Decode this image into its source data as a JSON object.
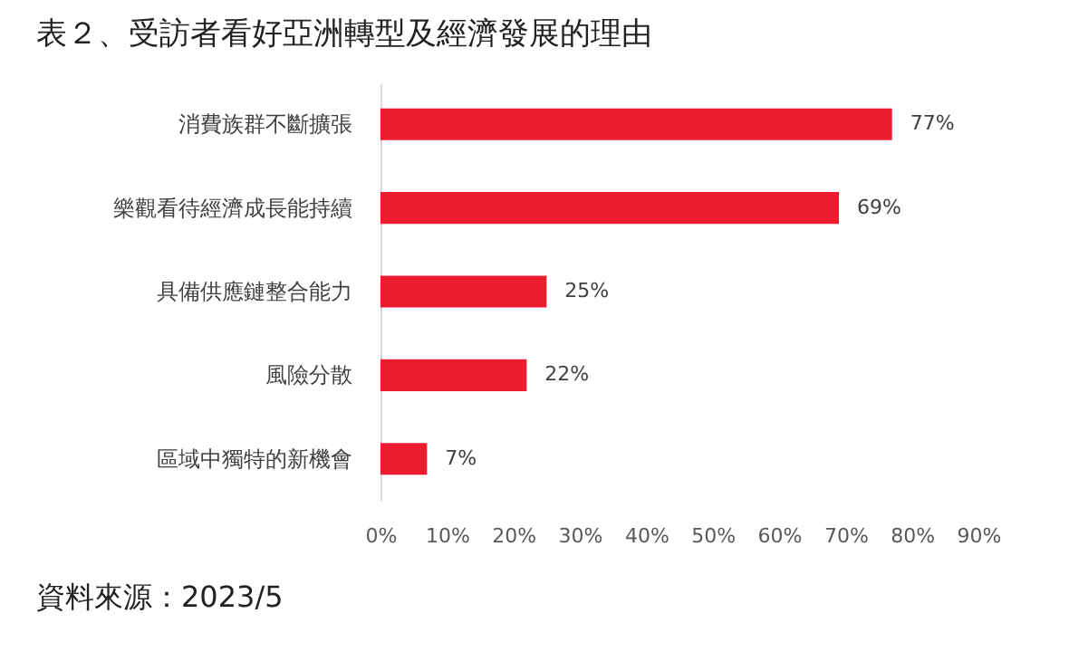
{
  "chart_data": {
    "type": "bar",
    "orientation": "horizontal",
    "title": "表２、受訪者看好亞洲轉型及經濟發展的理由",
    "categories": [
      "消費族群不斷擴張",
      "樂觀看待經濟成長能持續",
      "具備供應鏈整合能力",
      "風險分散",
      "區域中獨特的新機會"
    ],
    "values": [
      77,
      69,
      25,
      22,
      7
    ],
    "value_labels": [
      "77%",
      "69%",
      "25%",
      "22%",
      "7%"
    ],
    "color": "#ed1c2e",
    "xlim": [
      0,
      90
    ],
    "xticks": [
      {
        "value": 0,
        "label": "0%"
      },
      {
        "value": 10,
        "label": "10%"
      },
      {
        "value": 20,
        "label": "20%"
      },
      {
        "value": 30,
        "label": "30%"
      },
      {
        "value": 40,
        "label": "40%"
      },
      {
        "value": 50,
        "label": "50%"
      },
      {
        "value": 60,
        "label": "60%"
      },
      {
        "value": 70,
        "label": "70%"
      },
      {
        "value": 80,
        "label": "80%"
      },
      {
        "value": 90,
        "label": "90%"
      }
    ],
    "grid": false,
    "annotations": [
      "資料來源：2023/5"
    ]
  }
}
